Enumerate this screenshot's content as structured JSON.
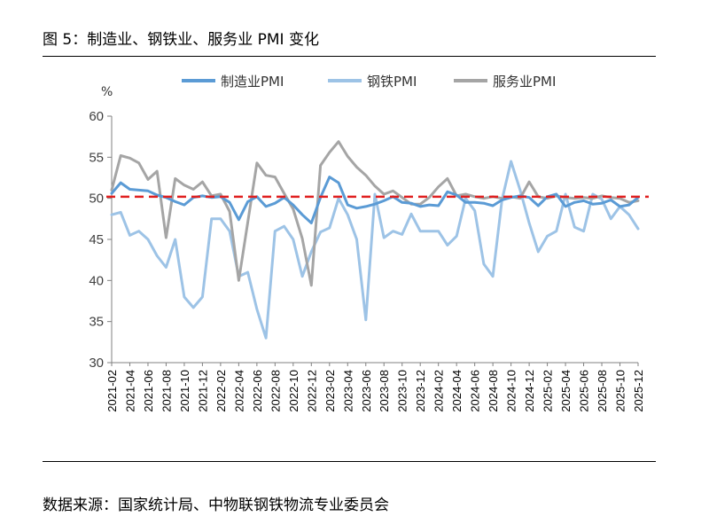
{
  "figure": {
    "title": "图 5：制造业、钢铁业、服务业 PMI 变化",
    "source": "数据来源：国家统计局、中物联钢铁物流专业委员会"
  },
  "chart_data": {
    "type": "line",
    "unit": "%",
    "ylim": [
      30,
      60
    ],
    "yticks": [
      30,
      35,
      40,
      45,
      50,
      55,
      60
    ],
    "xtick_labels": [
      "2021-02",
      "2021-04",
      "2021-06",
      "2021-08",
      "2021-10",
      "2021-12",
      "2022-02",
      "2022-04",
      "2022-06",
      "2022-08",
      "2022-10",
      "2022-12",
      "2023-02",
      "2023-04",
      "2023-06",
      "2023-08",
      "2023-10",
      "2023-12",
      "2024-02",
      "2024-04",
      "2024-06",
      "2024-08",
      "2024-10",
      "2024-12",
      "2025-02",
      "2025-04",
      "2025-06",
      "2025-08",
      "2025-10",
      "2025-12"
    ],
    "x": [
      "2021-02",
      "2021-03",
      "2021-04",
      "2021-05",
      "2021-06",
      "2021-07",
      "2021-08",
      "2021-09",
      "2021-10",
      "2021-11",
      "2021-12",
      "2022-01",
      "2022-02",
      "2022-03",
      "2022-04",
      "2022-05",
      "2022-06",
      "2022-07",
      "2022-08",
      "2022-09",
      "2022-10",
      "2022-11",
      "2022-12",
      "2023-01",
      "2023-02",
      "2023-03",
      "2023-04",
      "2023-05",
      "2023-06",
      "2023-07",
      "2023-08",
      "2023-09",
      "2023-10",
      "2023-11",
      "2023-12",
      "2024-01",
      "2024-02",
      "2024-03",
      "2024-04",
      "2024-05",
      "2024-06",
      "2024-07",
      "2024-08",
      "2024-09",
      "2024-10",
      "2024-11",
      "2024-12",
      "2025-01",
      "2025-02",
      "2025-03",
      "2025-04",
      "2025-05",
      "2025-06",
      "2025-07",
      "2025-08",
      "2025-09",
      "2025-10",
      "2025-11",
      "2025-12"
    ],
    "series": [
      {
        "name": "制造业PMI",
        "color": "#5b9bd5",
        "width": 3,
        "values": [
          50.6,
          51.9,
          51.1,
          51.0,
          50.9,
          50.4,
          50.1,
          49.6,
          49.2,
          50.1,
          50.3,
          50.1,
          50.2,
          49.5,
          47.4,
          49.6,
          50.2,
          49.0,
          49.4,
          50.1,
          49.2,
          48.0,
          47.0,
          50.1,
          52.6,
          51.9,
          49.2,
          48.8,
          49.0,
          49.3,
          49.7,
          50.2,
          49.5,
          49.4,
          49.0,
          49.2,
          49.1,
          50.8,
          50.4,
          49.5,
          49.5,
          49.4,
          49.1,
          49.8,
          50.1,
          50.3,
          50.1,
          49.1,
          50.2,
          50.5,
          49.0,
          49.5,
          49.7,
          49.3,
          49.4,
          49.8,
          49.0,
          49.2,
          50.1
        ]
      },
      {
        "name": "钢铁PMI",
        "color": "#9dc3e6",
        "width": 3,
        "values": [
          48.0,
          48.3,
          45.5,
          46.0,
          45.0,
          43.0,
          41.6,
          45.0,
          38.0,
          36.7,
          38.0,
          47.5,
          47.5,
          46.0,
          40.5,
          41.0,
          36.5,
          33.0,
          46.0,
          46.6,
          45.0,
          40.5,
          43.5,
          45.9,
          46.4,
          50.0,
          48.0,
          45.0,
          35.2,
          50.5,
          45.2,
          46.0,
          45.6,
          48.1,
          46.0,
          46.0,
          46.0,
          44.3,
          45.4,
          50.0,
          48.5,
          42.0,
          40.5,
          49.8,
          54.5,
          51.0,
          47.0,
          43.5,
          45.4,
          46.0,
          50.5,
          46.5,
          46.0,
          50.5,
          49.9,
          47.5,
          49.0,
          48.0,
          46.3
        ]
      },
      {
        "name": "服务业PMI",
        "color": "#a5a5a5",
        "width": 3,
        "values": [
          51.0,
          55.2,
          54.9,
          54.3,
          52.3,
          53.3,
          45.2,
          52.4,
          51.6,
          51.1,
          52.0,
          50.3,
          50.5,
          48.4,
          40.0,
          47.1,
          54.3,
          52.8,
          52.6,
          50.6,
          48.7,
          45.1,
          39.4,
          54.0,
          55.6,
          56.9,
          55.1,
          53.8,
          52.8,
          51.5,
          50.5,
          50.9,
          50.1,
          49.3,
          49.3,
          50.1,
          51.4,
          52.4,
          50.3,
          50.5,
          50.2,
          50.0,
          50.2,
          50.0,
          50.2,
          50.0,
          52.0,
          50.2,
          50.0,
          50.3,
          50.1,
          50.0,
          50.1,
          50.0,
          50.3,
          50.1,
          50.0,
          49.5,
          49.7
        ]
      }
    ],
    "reference_line": {
      "value": 50.2,
      "color": "#e02020",
      "style": "dashed"
    },
    "legend_position": "top"
  }
}
